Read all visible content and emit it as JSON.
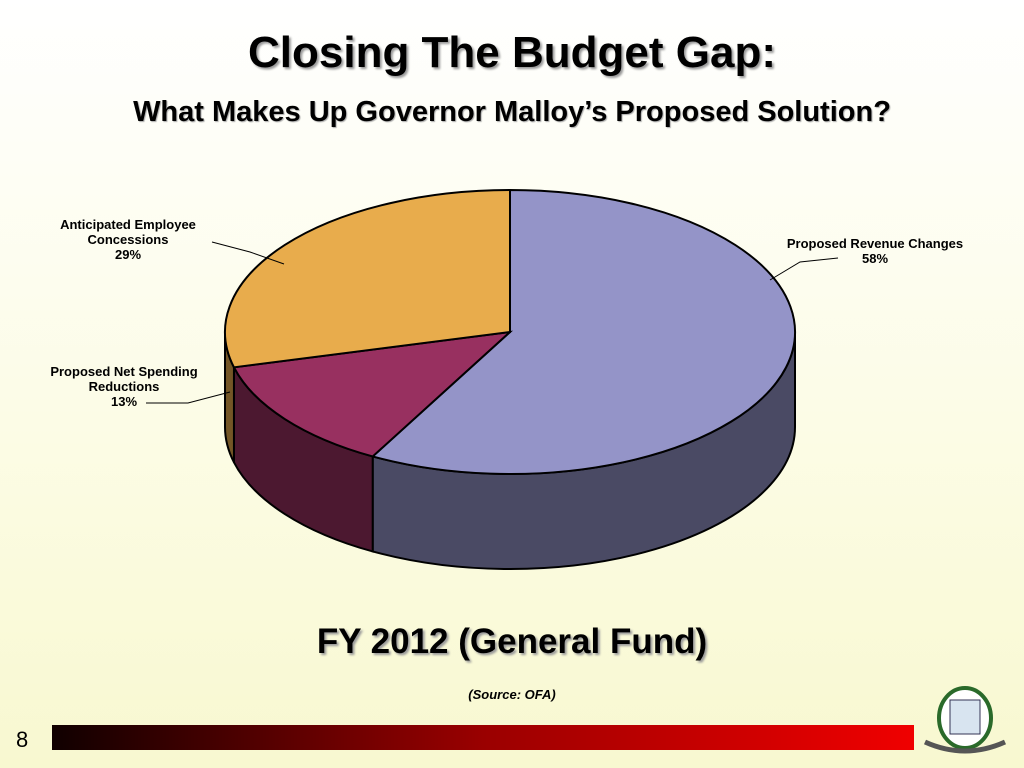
{
  "slide": {
    "title": "Closing The Budget Gap:",
    "subtitle": "What Makes Up Governor Malloy’s Proposed Solution?",
    "page_number": "8"
  },
  "chart_data": {
    "type": "pie",
    "title": "FY 2012 (General Fund)",
    "source": "(Source: OFA)",
    "categories": [
      "Proposed Revenue Changes",
      "Proposed Net Spending Reductions",
      "Anticipated Employee Concessions"
    ],
    "values": [
      58,
      13,
      29
    ],
    "value_labels": [
      "58%",
      "13%",
      "29%"
    ],
    "colors": [
      "#9494c8",
      "#983060",
      "#e8ac4c"
    ]
  }
}
